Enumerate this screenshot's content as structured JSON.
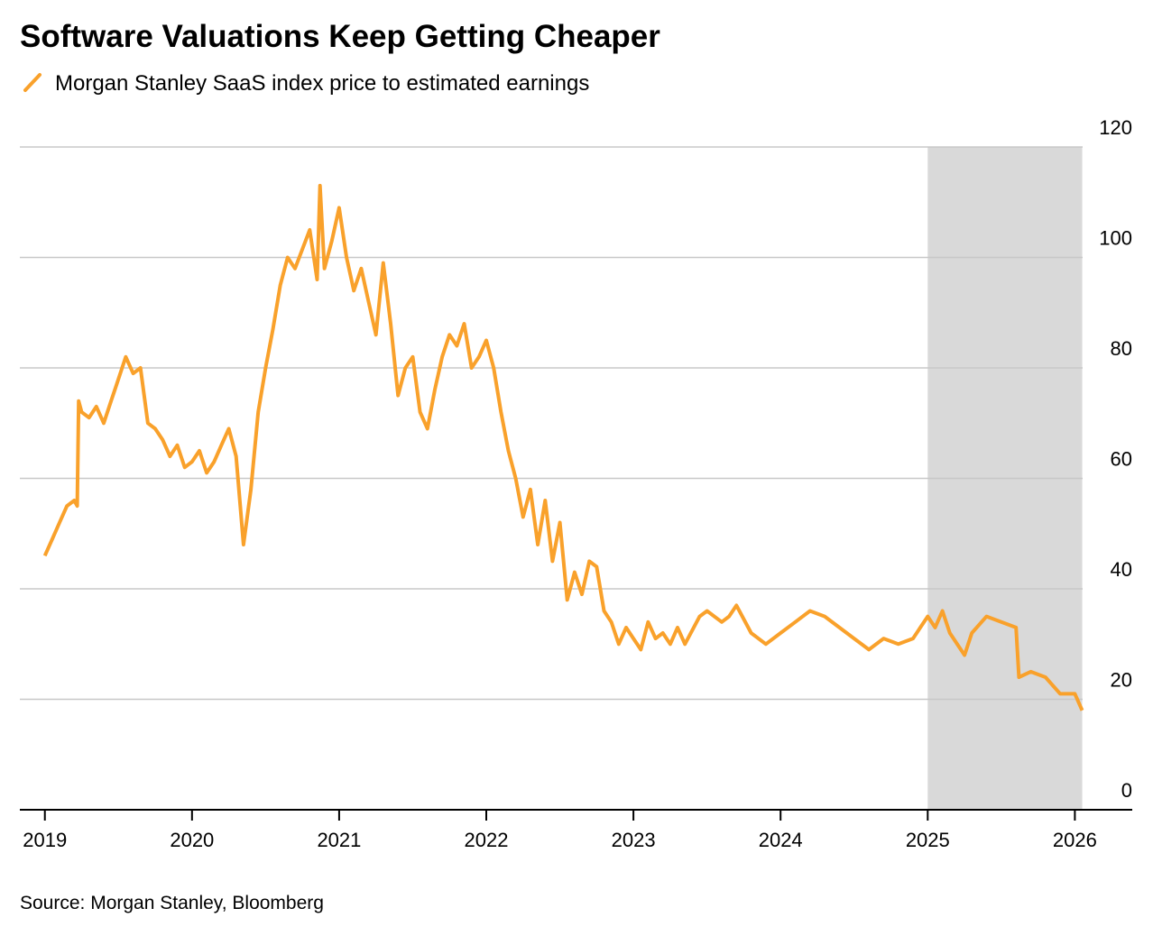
{
  "chart_data": {
    "type": "line",
    "title": "Software Valuations Keep Getting Cheaper",
    "source": "Source: Morgan Stanley, Bloomberg",
    "x": [
      2019.0,
      2019.05,
      2019.1,
      2019.15,
      2019.2,
      2019.22,
      2019.23,
      2019.25,
      2019.3,
      2019.35,
      2019.4,
      2019.45,
      2019.5,
      2019.55,
      2019.6,
      2019.65,
      2019.7,
      2019.75,
      2019.8,
      2019.85,
      2019.9,
      2019.95,
      2020.0,
      2020.05,
      2020.1,
      2020.15,
      2020.2,
      2020.25,
      2020.3,
      2020.35,
      2020.4,
      2020.45,
      2020.5,
      2020.55,
      2020.6,
      2020.65,
      2020.7,
      2020.8,
      2020.85,
      2020.87,
      2020.9,
      2020.95,
      2021.0,
      2021.05,
      2021.1,
      2021.15,
      2021.2,
      2021.25,
      2021.3,
      2021.35,
      2021.4,
      2021.45,
      2021.5,
      2021.55,
      2021.6,
      2021.65,
      2021.7,
      2021.75,
      2021.8,
      2021.85,
      2021.9,
      2021.95,
      2022.0,
      2022.05,
      2022.1,
      2022.15,
      2022.2,
      2022.25,
      2022.3,
      2022.35,
      2022.4,
      2022.45,
      2022.5,
      2022.55,
      2022.6,
      2022.65,
      2022.7,
      2022.75,
      2022.8,
      2022.85,
      2022.9,
      2022.95,
      2023.0,
      2023.05,
      2023.1,
      2023.15,
      2023.2,
      2023.25,
      2023.3,
      2023.35,
      2023.45,
      2023.5,
      2023.6,
      2023.65,
      2023.7,
      2023.8,
      2023.9,
      2024.0,
      2024.1,
      2024.2,
      2024.3,
      2024.4,
      2024.5,
      2024.6,
      2024.7,
      2024.8,
      2024.9,
      2024.95,
      2025.0,
      2025.05,
      2025.1,
      2025.15,
      2025.25,
      2025.3,
      2025.4,
      2025.5,
      2025.6,
      2025.62,
      2025.7,
      2025.8,
      2025.9,
      2026.0,
      2026.05
    ],
    "series": [
      {
        "name": "Morgan Stanley SaaS index price to estimated earnings",
        "color": "#f9a12b",
        "values": [
          46,
          49,
          52,
          55,
          56,
          55,
          74,
          72,
          71,
          73,
          70,
          74,
          78,
          82,
          79,
          80,
          70,
          69,
          67,
          64,
          66,
          62,
          63,
          65,
          61,
          63,
          66,
          69,
          64,
          48,
          58,
          72,
          80,
          87,
          95,
          100,
          98,
          105,
          96,
          113,
          98,
          103,
          109,
          100,
          94,
          98,
          92,
          86,
          99,
          88,
          75,
          80,
          82,
          72,
          69,
          76,
          82,
          86,
          84,
          88,
          80,
          82,
          85,
          80,
          72,
          65,
          60,
          53,
          58,
          48,
          56,
          45,
          52,
          38,
          43,
          39,
          45,
          44,
          36,
          34,
          30,
          33,
          31,
          29,
          34,
          31,
          32,
          30,
          33,
          30,
          35,
          36,
          34,
          35,
          37,
          32,
          30,
          32,
          34,
          36,
          35,
          33,
          31,
          29,
          31,
          30,
          31,
          33,
          35,
          33,
          36,
          32,
          28,
          32,
          35,
          34,
          33,
          24,
          25,
          24,
          21,
          21,
          18
        ]
      }
    ],
    "xlim": [
      2018.83,
      2026.39
    ],
    "xticks": [
      2019,
      2020,
      2021,
      2022,
      2023,
      2024,
      2025,
      2026
    ],
    "ylim": [
      0,
      120
    ],
    "yticks": [
      0,
      20,
      40,
      60,
      80,
      100,
      120
    ],
    "grid": true,
    "shade": [
      2025,
      2026.05
    ],
    "shade_color": "#d9d9d9"
  }
}
